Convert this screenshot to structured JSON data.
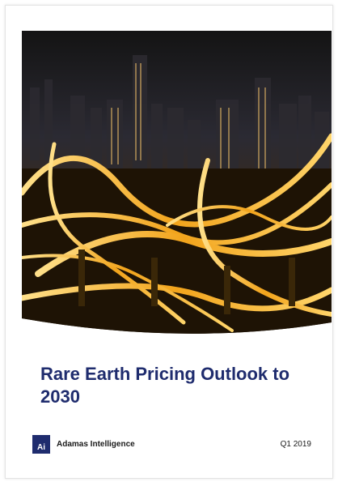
{
  "cover": {
    "title": "Rare Earth Pricing Outlook to 2030",
    "logo": "Ai",
    "publisher": "Adamas Intelligence",
    "issue": "Q1 2019"
  }
}
